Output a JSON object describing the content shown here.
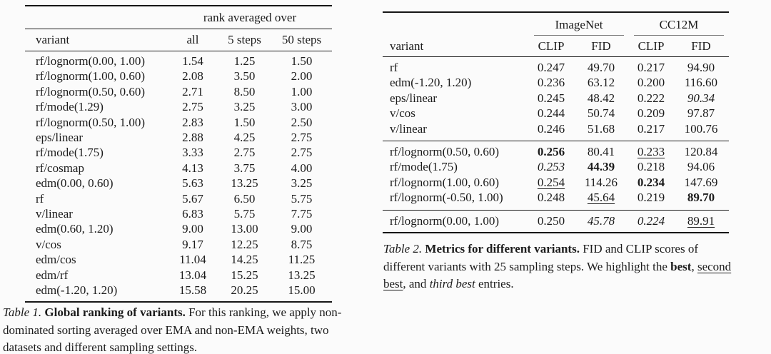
{
  "page": {
    "background": "#fbfbfb",
    "text_color": "#1b1b1b"
  },
  "table1": {
    "spanner": "rank averaged over",
    "columns": [
      "variant",
      "all",
      "5 steps",
      "50 steps"
    ],
    "rows": [
      [
        "rf/lognorm(0.00, 1.00)",
        "1.54",
        "1.25",
        "1.50"
      ],
      [
        "rf/lognorm(1.00, 0.60)",
        "2.08",
        "3.50",
        "2.00"
      ],
      [
        "rf/lognorm(0.50, 0.60)",
        "2.71",
        "8.50",
        "1.00"
      ],
      [
        "rf/mode(1.29)",
        "2.75",
        "3.25",
        "3.00"
      ],
      [
        "rf/lognorm(0.50, 1.00)",
        "2.83",
        "1.50",
        "2.50"
      ],
      [
        "eps/linear",
        "2.88",
        "4.25",
        "2.75"
      ],
      [
        "rf/mode(1.75)",
        "3.33",
        "2.75",
        "2.75"
      ],
      [
        "rf/cosmap",
        "4.13",
        "3.75",
        "4.00"
      ],
      [
        "edm(0.00, 0.60)",
        "5.63",
        "13.25",
        "3.25"
      ],
      [
        "rf",
        "5.67",
        "6.50",
        "5.75"
      ],
      [
        "v/linear",
        "6.83",
        "5.75",
        "7.75"
      ],
      [
        "edm(0.60, 1.20)",
        "9.00",
        "13.00",
        "9.00"
      ],
      [
        "v/cos",
        "9.17",
        "12.25",
        "8.75"
      ],
      [
        "edm/cos",
        "11.04",
        "14.25",
        "11.25"
      ],
      [
        "edm/rf",
        "13.04",
        "15.25",
        "13.25"
      ],
      [
        "edm(-1.20, 1.20)",
        "15.58",
        "20.25",
        "15.00"
      ]
    ],
    "caption": [
      {
        "t": "Table 1.",
        "s": "i"
      },
      {
        "t": "  ",
        "s": ""
      },
      {
        "t": "Global ranking of variants.",
        "s": "b"
      },
      {
        "t": " For this ranking, we apply non-dominated sorting averaged over EMA and non-EMA weights, two datasets and different sampling settings.",
        "s": ""
      }
    ]
  },
  "table2": {
    "group_headers": [
      "ImageNet",
      "CC12M"
    ],
    "columns": [
      "variant",
      "CLIP",
      "FID",
      "CLIP",
      "FID"
    ],
    "groups": [
      {
        "rows": [
          [
            "rf",
            "0.247",
            "49.70",
            "0.217",
            "94.90"
          ],
          [
            "edm(-1.20, 1.20)",
            "0.236",
            "63.12",
            "0.200",
            "116.60"
          ],
          [
            "eps/linear",
            "0.245",
            "48.42",
            "0.222",
            {
              "t": "90.34",
              "s": "i"
            }
          ],
          [
            "v/cos",
            "0.244",
            "50.74",
            "0.209",
            "97.87"
          ],
          [
            "v/linear",
            "0.246",
            "51.68",
            "0.217",
            "100.76"
          ]
        ]
      },
      {
        "rows": [
          [
            "rf/lognorm(0.50, 0.60)",
            {
              "t": "0.256",
              "s": "b"
            },
            "80.41",
            {
              "t": "0.233",
              "s": "u"
            },
            "120.84"
          ],
          [
            "rf/mode(1.75)",
            {
              "t": "0.253",
              "s": "i"
            },
            {
              "t": "44.39",
              "s": "b"
            },
            "0.218",
            "94.06"
          ],
          [
            "rf/lognorm(1.00, 0.60)",
            {
              "t": "0.254",
              "s": "u"
            },
            "114.26",
            {
              "t": "0.234",
              "s": "b"
            },
            "147.69"
          ],
          [
            "rf/lognorm(-0.50, 1.00)",
            "0.248",
            {
              "t": "45.64",
              "s": "u"
            },
            "0.219",
            {
              "t": "89.70",
              "s": "b"
            }
          ]
        ]
      },
      {
        "rows": [
          [
            "rf/lognorm(0.00, 1.00)",
            "0.250",
            {
              "t": "45.78",
              "s": "i"
            },
            {
              "t": "0.224",
              "s": "i"
            },
            {
              "t": "89.91",
              "s": "u"
            }
          ]
        ]
      }
    ],
    "caption": [
      {
        "t": "Table 2.",
        "s": "i"
      },
      {
        "t": "  ",
        "s": ""
      },
      {
        "t": "Metrics for different variants.",
        "s": "b"
      },
      {
        "t": " FID and CLIP scores of different variants with 25 sampling steps. We highlight the ",
        "s": ""
      },
      {
        "t": "best",
        "s": "b"
      },
      {
        "t": ", ",
        "s": ""
      },
      {
        "t": "second best",
        "s": "u"
      },
      {
        "t": ", and ",
        "s": ""
      },
      {
        "t": "third best",
        "s": "i"
      },
      {
        "t": " entries.",
        "s": ""
      }
    ]
  }
}
